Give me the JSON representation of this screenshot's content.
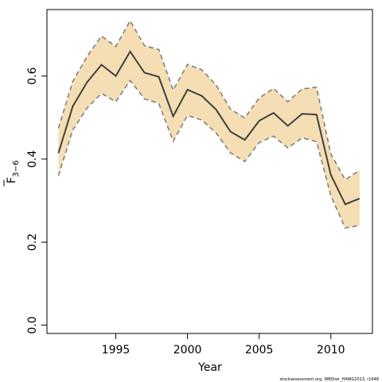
{
  "chart_data": {
    "type": "line",
    "xlabel": "Year",
    "ylabel": {
      "main": "F",
      "sub": "3−6"
    },
    "xlim": [
      1990.2,
      2012.9
    ],
    "ylim": [
      -0.02,
      0.76
    ],
    "xticks": [
      1995,
      2000,
      2005,
      2010
    ],
    "yticks": [
      "0.0",
      "0.2",
      "0.4",
      "0.6"
    ],
    "grid": false,
    "colors": {
      "band": "#f5deb3",
      "band_edge": "#808080",
      "line": "#404040"
    },
    "x": [
      1991,
      1992,
      1993,
      1994,
      1995,
      1996,
      1997,
      1998,
      1999,
      2000,
      2001,
      2002,
      2003,
      2004,
      2005,
      2006,
      2007,
      2008,
      2009,
      2010,
      2011,
      2012
    ],
    "series": [
      {
        "role": "estimate",
        "values": [
          0.414,
          0.527,
          0.585,
          0.627,
          0.6,
          0.659,
          0.608,
          0.598,
          0.503,
          0.567,
          0.552,
          0.519,
          0.466,
          0.446,
          0.492,
          0.511,
          0.48,
          0.509,
          0.507,
          0.362,
          0.291,
          0.305
        ]
      },
      {
        "role": "upper",
        "values": [
          0.474,
          0.587,
          0.647,
          0.696,
          0.671,
          0.733,
          0.673,
          0.664,
          0.566,
          0.628,
          0.615,
          0.578,
          0.52,
          0.499,
          0.547,
          0.57,
          0.538,
          0.569,
          0.573,
          0.412,
          0.35,
          0.373
        ]
      },
      {
        "role": "lower",
        "values": [
          0.36,
          0.47,
          0.523,
          0.558,
          0.538,
          0.589,
          0.545,
          0.534,
          0.443,
          0.505,
          0.494,
          0.463,
          0.415,
          0.394,
          0.44,
          0.455,
          0.427,
          0.451,
          0.442,
          0.312,
          0.234,
          0.24
        ]
      }
    ]
  },
  "credit": "stockassessment.org, WBSher_HAWG2013, r1648"
}
